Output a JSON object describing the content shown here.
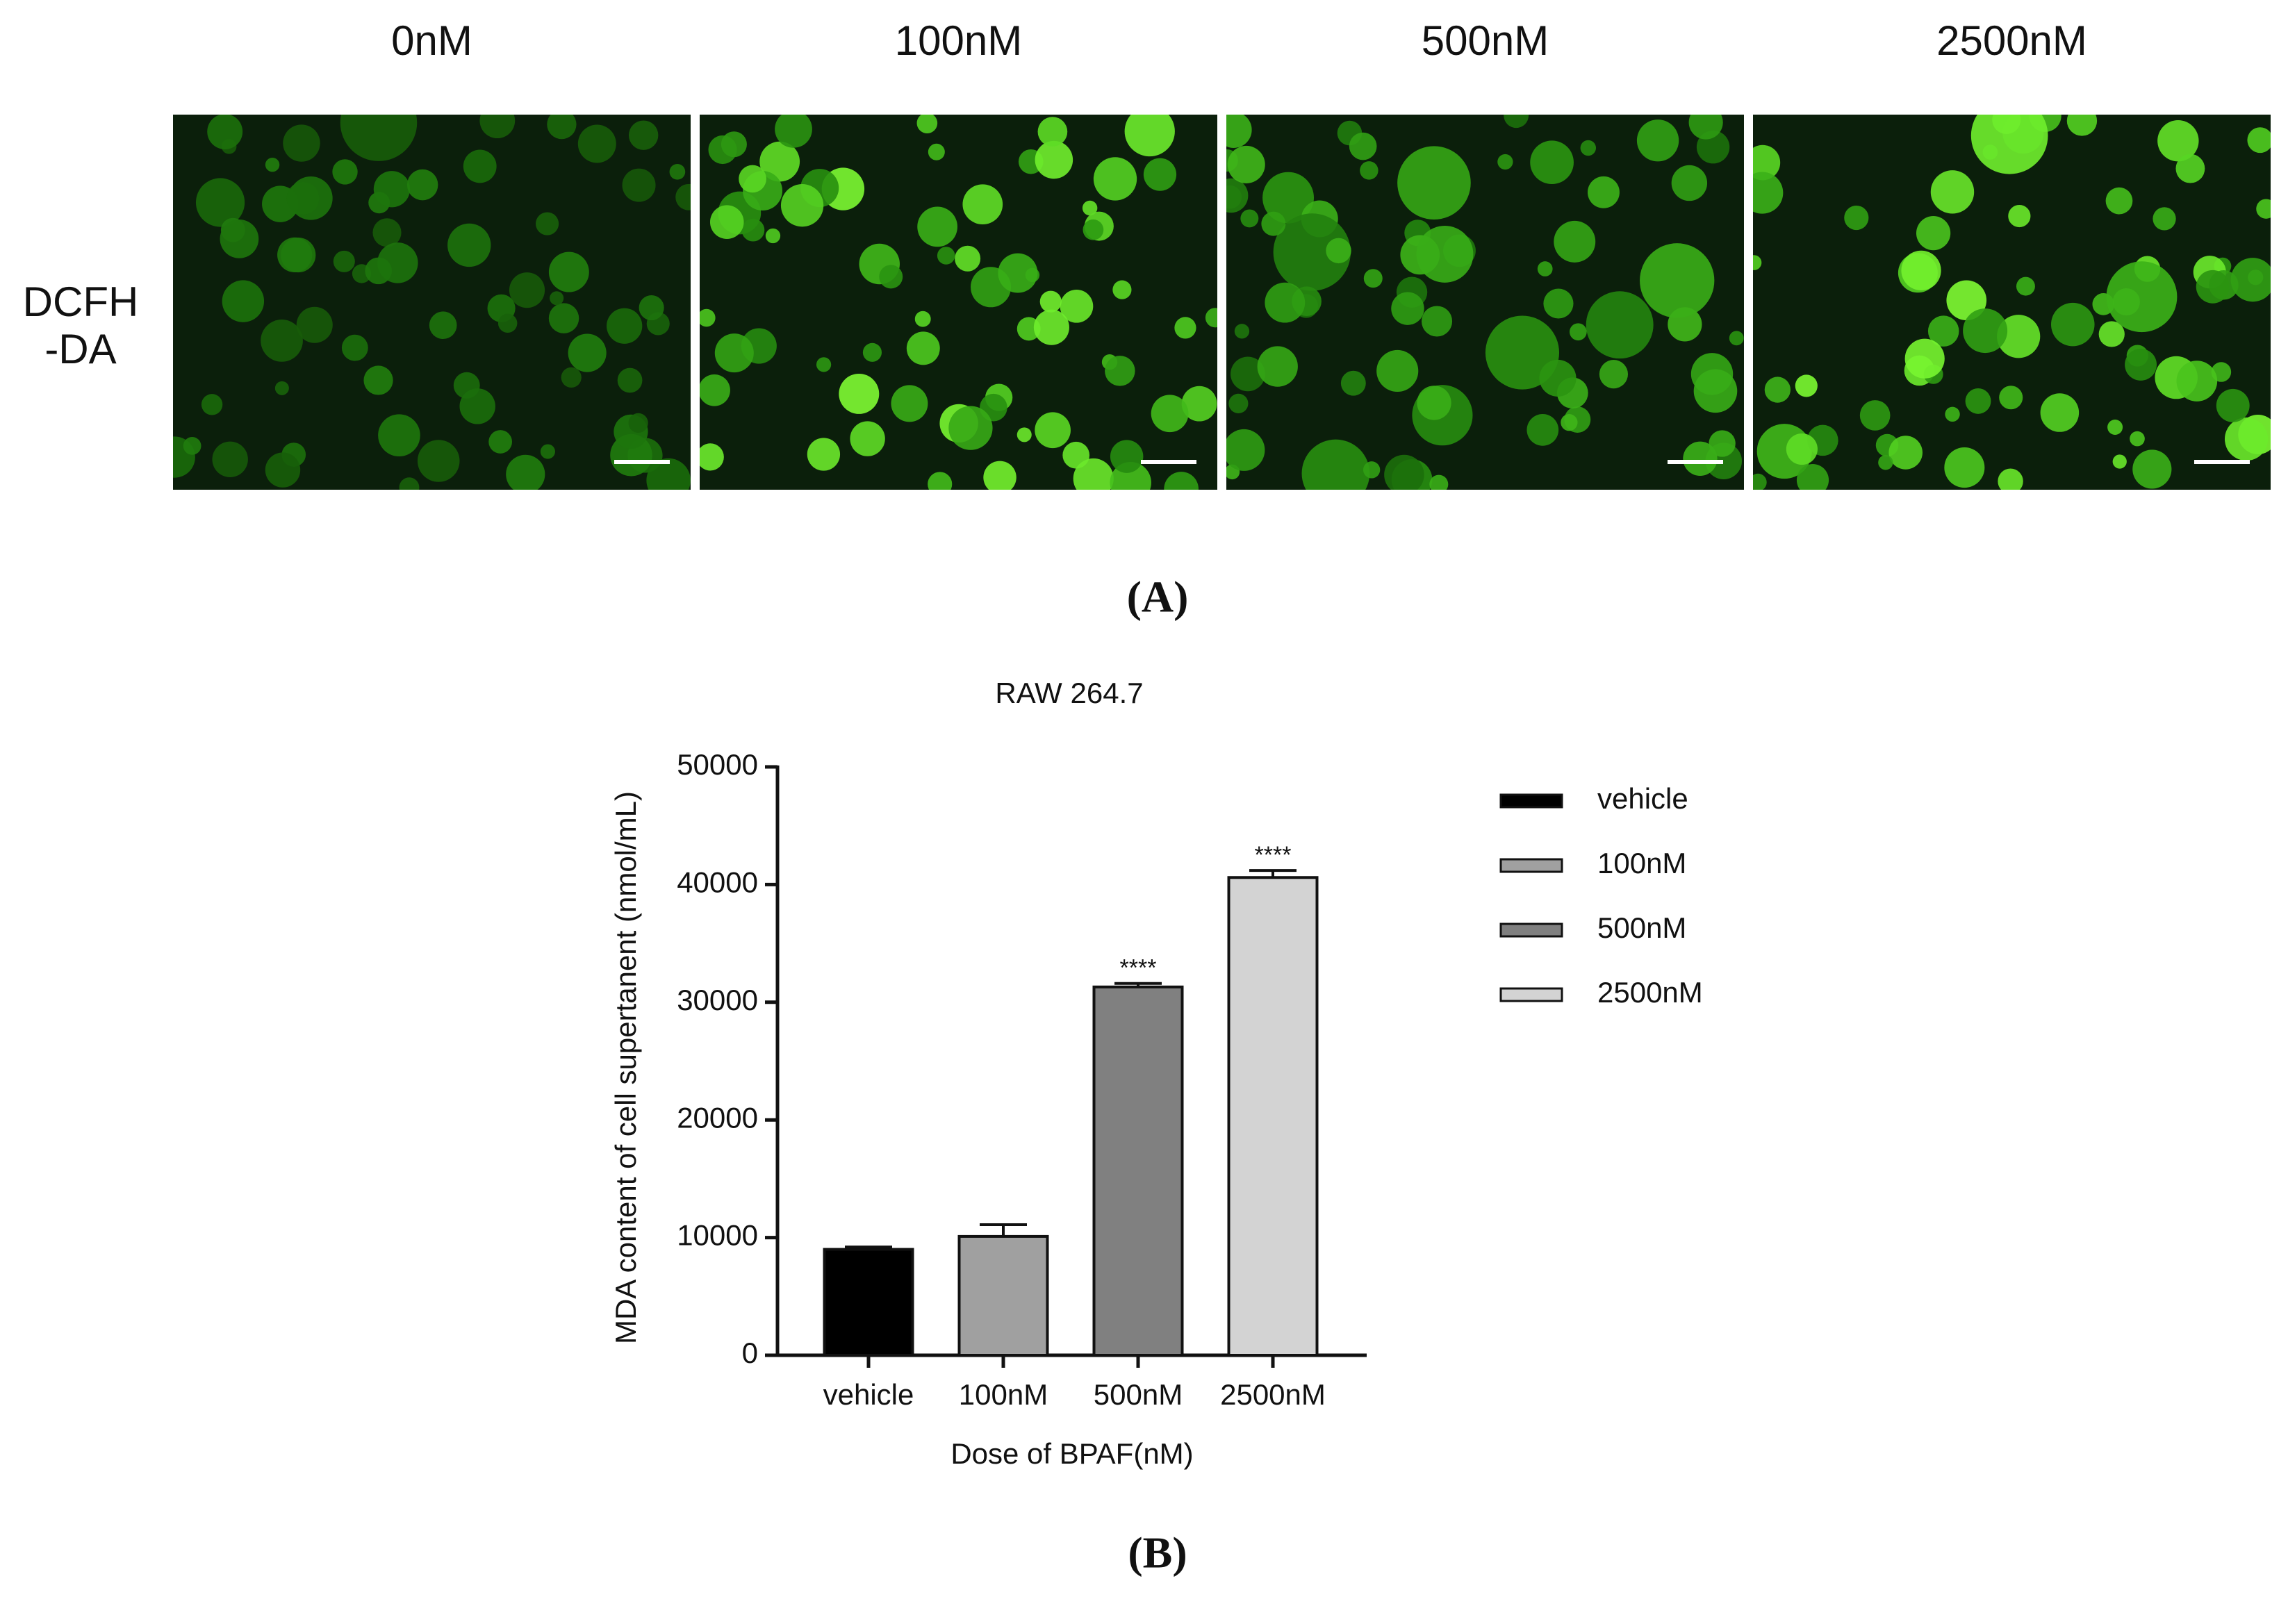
{
  "panel_a": {
    "columns": [
      "0nM",
      "100nM",
      "500nM",
      "2500nM"
    ],
    "row_label": [
      "DCFH",
      "-DA"
    ],
    "panel_label": "(A)"
  },
  "chart_data": {
    "type": "bar",
    "title": "RAW 264.7",
    "x_label": "Dose of BPAF(nM)",
    "y_label": "MDA content of cell supertanent (nmol/mL)",
    "categories": [
      "vehicle",
      "100nM",
      "500nM",
      "2500nM"
    ],
    "values": [
      9000,
      10100,
      31300,
      40600
    ],
    "errors": [
      200,
      1000,
      300,
      600
    ],
    "annotations": [
      null,
      null,
      "****",
      "****"
    ],
    "colors": [
      "#000000",
      "#a0a0a0",
      "#808080",
      "#d3d3d3"
    ],
    "ylim": [
      0,
      50000
    ],
    "yticks": [
      0,
      10000,
      20000,
      30000,
      40000,
      50000
    ],
    "legend": "right",
    "panel_label": "(B)"
  }
}
